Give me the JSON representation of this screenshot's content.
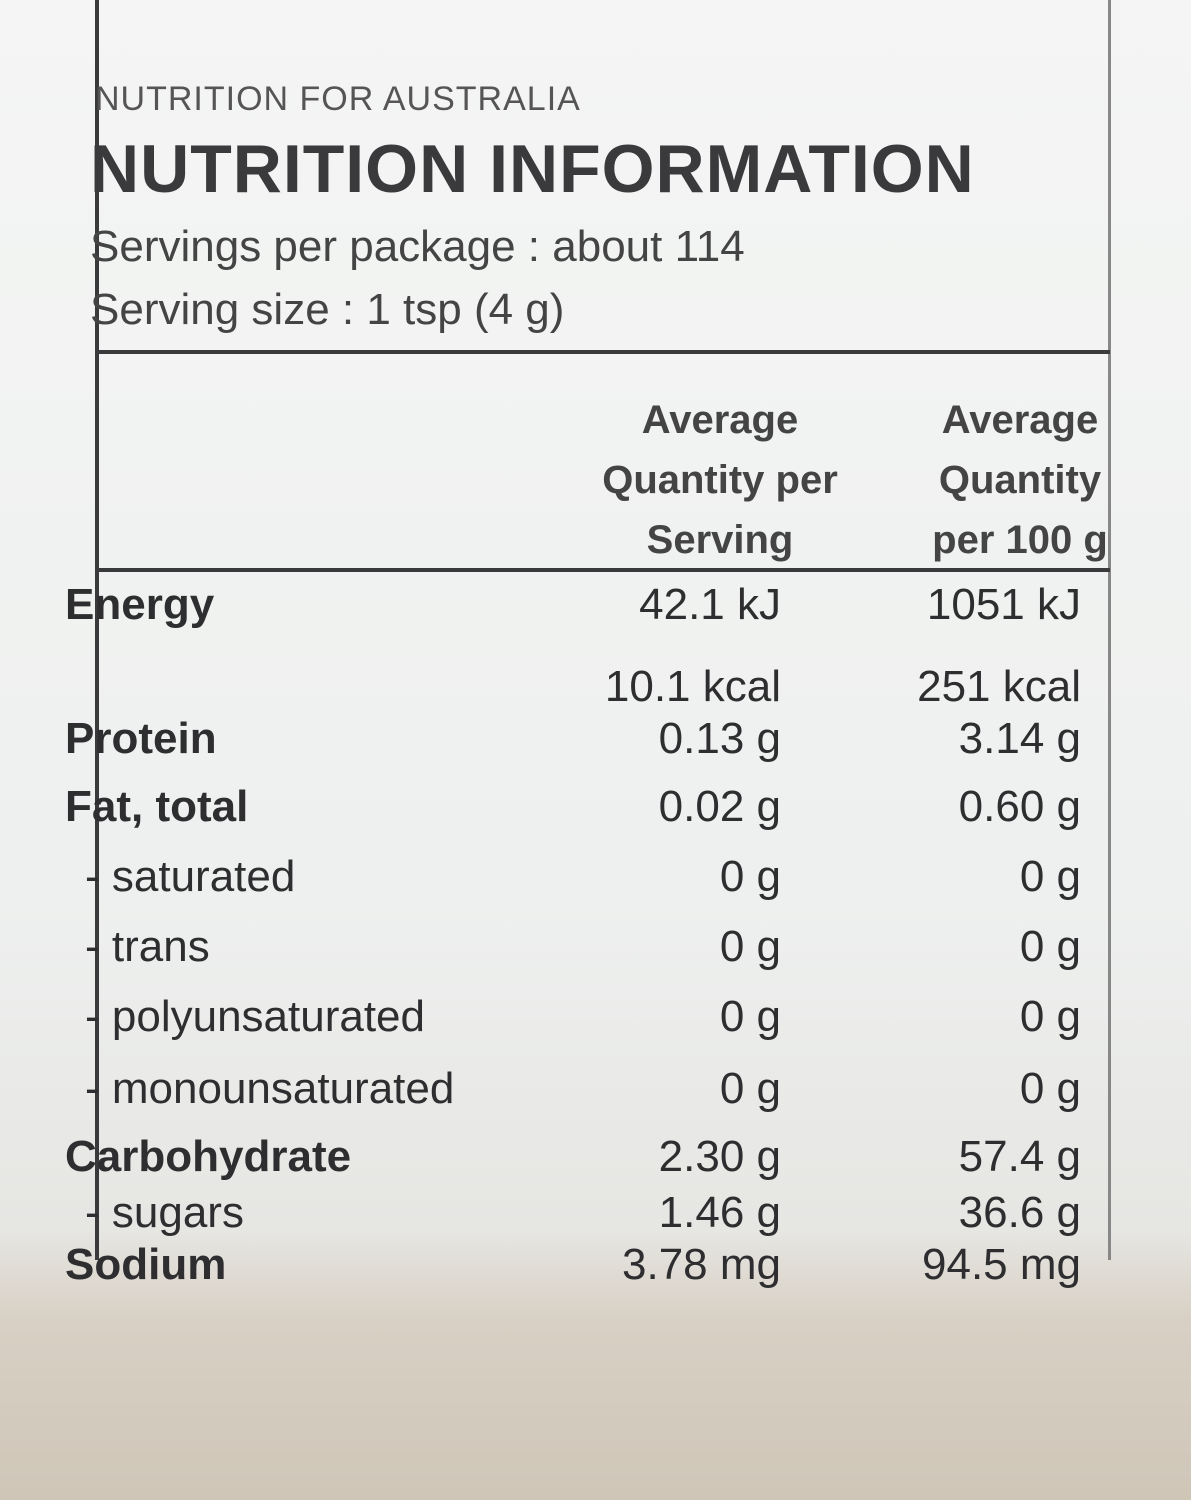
{
  "header": {
    "top_line": "NUTRITION FOR AUSTRALIA",
    "title": "NUTRITION INFORMATION",
    "servings": "Servings per package : about 114",
    "serving_size": "Serving size : 1 tsp (4 g)"
  },
  "table": {
    "columns": [
      "Average Quantity per Serving",
      "Average Quantity per 100 g"
    ],
    "rows": [
      {
        "label": "Energy",
        "serving": "42.1 kJ",
        "per100": "1051 kJ",
        "bold": true
      },
      {
        "serving": "10.1 kcal",
        "per100": "251 kcal"
      },
      {
        "label": "Protein",
        "serving": "0.13 g",
        "per100": "3.14 g",
        "bold": true
      },
      {
        "label": "Fat, total",
        "serving": "0.02 g",
        "per100": "0.60 g",
        "bold": true
      },
      {
        "label": "- saturated",
        "serving": "0 g",
        "per100": "0 g"
      },
      {
        "label": "- trans",
        "serving": "0 g",
        "per100": "0 g"
      },
      {
        "label": "- polyunsaturated",
        "serving": "0 g",
        "per100": "0 g"
      },
      {
        "label": "- monounsaturated",
        "serving": "0 g",
        "per100": "0 g"
      },
      {
        "label": "Carbohydrate",
        "serving": "2.30 g",
        "per100": "57.4 g",
        "bold": true
      },
      {
        "label": "- sugars",
        "serving": "1.46 g",
        "per100": "36.6 g"
      },
      {
        "label": "Sodium",
        "serving": "3.78 mg",
        "per100": "94.5 mg",
        "bold": true
      }
    ]
  }
}
